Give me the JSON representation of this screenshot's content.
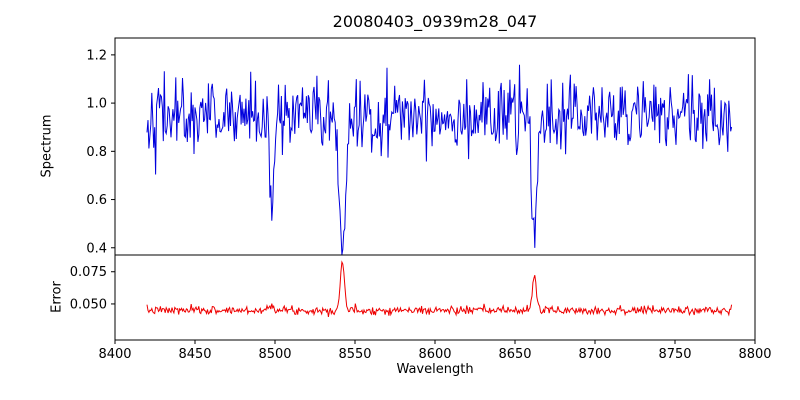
{
  "title": "20080403_0939m28_047",
  "xlabel": "Wavelength",
  "chart_data": {
    "type": "line",
    "title": "20080403_0939m28_047",
    "xlabel": "Wavelength",
    "xlim": [
      8400,
      8800
    ],
    "xtick_values": [
      8400,
      8450,
      8500,
      8550,
      8600,
      8650,
      8700,
      8750,
      8800
    ],
    "xtick_labels": [
      "8400",
      "8450",
      "8500",
      "8550",
      "8600",
      "8650",
      "8700",
      "8750",
      "8800"
    ],
    "x_range": {
      "start": 8420,
      "end": 8786,
      "step": 0.6
    },
    "grid": false,
    "legend": "none",
    "panels": [
      {
        "name": "spectrum",
        "ylabel": "Spectrum",
        "color": "#0000dd",
        "ylim": [
          0.37,
          1.27
        ],
        "ytick_values": [
          0.4,
          0.6,
          0.8,
          1.0,
          1.2
        ],
        "ytick_labels": [
          "0.4",
          "0.6",
          "0.8",
          "1.0",
          "1.2"
        ],
        "baseline": 0.95,
        "noise_sigma": 0.075,
        "seed": 42,
        "absorption_lines": [
          {
            "center": 8498.0,
            "depth": 0.38,
            "sigma": 1.6,
            "min_value": 0.61
          },
          {
            "center": 8542.1,
            "depth": 0.6,
            "sigma": 2.1,
            "min_value": 0.4
          },
          {
            "center": 8662.1,
            "depth": 0.52,
            "sigma": 1.9,
            "min_value": 0.45
          }
        ]
      },
      {
        "name": "error",
        "ylabel": "Error",
        "color": "#ee0000",
        "ylim": [
          0.022,
          0.088
        ],
        "ytick_values": [
          0.05,
          0.075
        ],
        "ytick_labels": [
          "0.050",
          "0.075"
        ],
        "baseline": 0.045,
        "noise_sigma": 0.0016,
        "seed": 7,
        "emission_peaks": [
          {
            "center": 8498.0,
            "amp": 0.005,
            "sigma": 1.5,
            "peak_value": 0.05
          },
          {
            "center": 8542.1,
            "amp": 0.038,
            "sigma": 1.3,
            "peak_value": 0.083
          },
          {
            "center": 8662.1,
            "amp": 0.026,
            "sigma": 1.3,
            "peak_value": 0.071
          }
        ]
      }
    ]
  }
}
